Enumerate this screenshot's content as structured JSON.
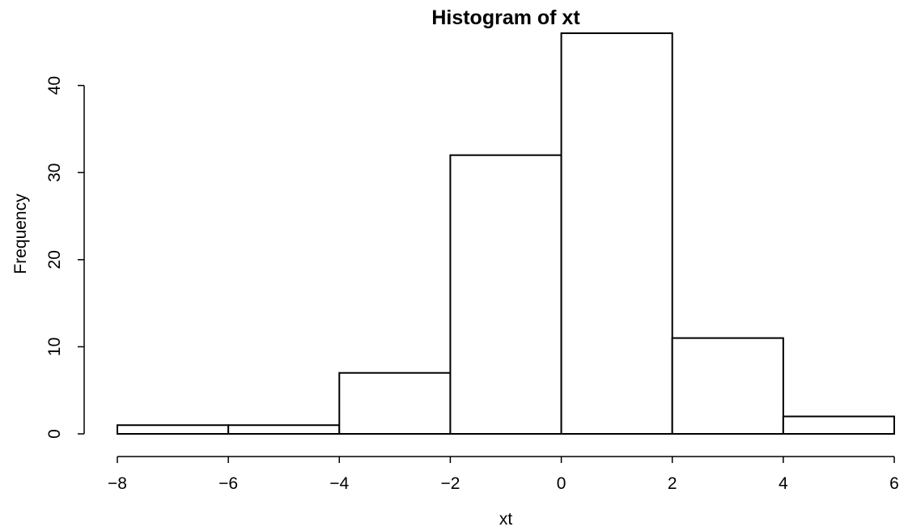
{
  "chart_data": {
    "type": "bar",
    "title": "Histogram of xt",
    "xlabel": "xt",
    "ylabel": "Frequency",
    "bins": [
      {
        "start": -8,
        "end": -6,
        "count": 1
      },
      {
        "start": -6,
        "end": -4,
        "count": 1
      },
      {
        "start": -4,
        "end": -2,
        "count": 7
      },
      {
        "start": -2,
        "end": 0,
        "count": 32
      },
      {
        "start": 0,
        "end": 2,
        "count": 46
      },
      {
        "start": 2,
        "end": 4,
        "count": 11
      },
      {
        "start": 4,
        "end": 6,
        "count": 2
      }
    ],
    "xlim": [
      -8,
      6
    ],
    "ylim": [
      0,
      46
    ],
    "x_ticks": [
      -8,
      -6,
      -4,
      -2,
      0,
      2,
      4,
      6
    ],
    "x_tick_labels": [
      "−8",
      "−6",
      "−4",
      "−2",
      "0",
      "2",
      "4",
      "6"
    ],
    "y_ticks": [
      0,
      10,
      20,
      30,
      40
    ],
    "y_tick_labels": [
      "0",
      "10",
      "20",
      "30",
      "40"
    ],
    "grid": false,
    "colors": {
      "bar_fill": "#ffffff",
      "bar_stroke": "#000000"
    }
  }
}
